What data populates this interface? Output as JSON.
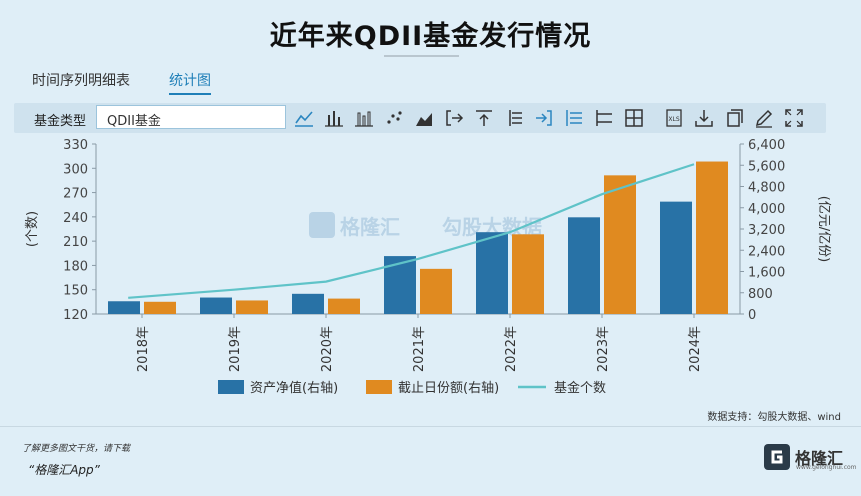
{
  "title": "近年来QDII基金发行情况",
  "tabs": [
    {
      "label": "时间序列明细表"
    },
    {
      "label": "统计图"
    }
  ],
  "toolbar": {
    "type_label": "基金类型",
    "type_value": "QDII基金",
    "icons": [
      "line-chart-icon",
      "bar-chart-icon",
      "stacked-bar-icon",
      "scatter-icon",
      "area-chart-icon",
      "export-icon",
      "upload-icon",
      "list-icon",
      "import-icon",
      "align-icon",
      "rows-icon",
      "table-icon",
      "xls-export-icon",
      "download-icon",
      "copy-icon",
      "edit-icon",
      "fullscreen-icon"
    ]
  },
  "watermark": {
    "brand": "格隆汇",
    "text": "勾股大数据"
  },
  "source": "数据支持：勾股大数据、wind",
  "footer": {
    "note": "了解更多图文干货，请下载",
    "app": "“格隆汇App”",
    "brand": "格隆汇",
    "brand_sub": "www.gelonghui.com"
  },
  "colors": {
    "nav_bar": "#2872a6",
    "share_bar": "#e08a20",
    "count_line": "#5fc3c8"
  },
  "chart_data": {
    "type": "bar",
    "categories": [
      "2018年",
      "2019年",
      "2020年",
      "2021年",
      "2022年",
      "2023年",
      "2024年"
    ],
    "series": [
      {
        "name": "资产净值(右轴)",
        "type": "bar",
        "axis": "right",
        "values": [
          480,
          620,
          760,
          2180,
          3080,
          3640,
          4230
        ]
      },
      {
        "name": "截止日份额(右轴)",
        "type": "bar",
        "axis": "right",
        "values": [
          460,
          510,
          580,
          1700,
          3000,
          5220,
          5740
        ]
      },
      {
        "name": "基金个数",
        "type": "line",
        "axis": "left",
        "values": [
          140,
          150,
          160,
          188,
          221,
          268,
          305
        ]
      }
    ],
    "y_left": {
      "label": "(个数)",
      "min": 120,
      "max": 330,
      "ticks": [
        120,
        150,
        180,
        210,
        240,
        270,
        300,
        330
      ]
    },
    "y_right": {
      "label": "(亿元/亿份)",
      "min": 0,
      "max": 6400,
      "ticks": [
        "0",
        "800",
        "1,600",
        "2,400",
        "3,200",
        "4,000",
        "4,800",
        "5,600",
        "6,400"
      ]
    },
    "legend": "bottom",
    "grid": false
  }
}
